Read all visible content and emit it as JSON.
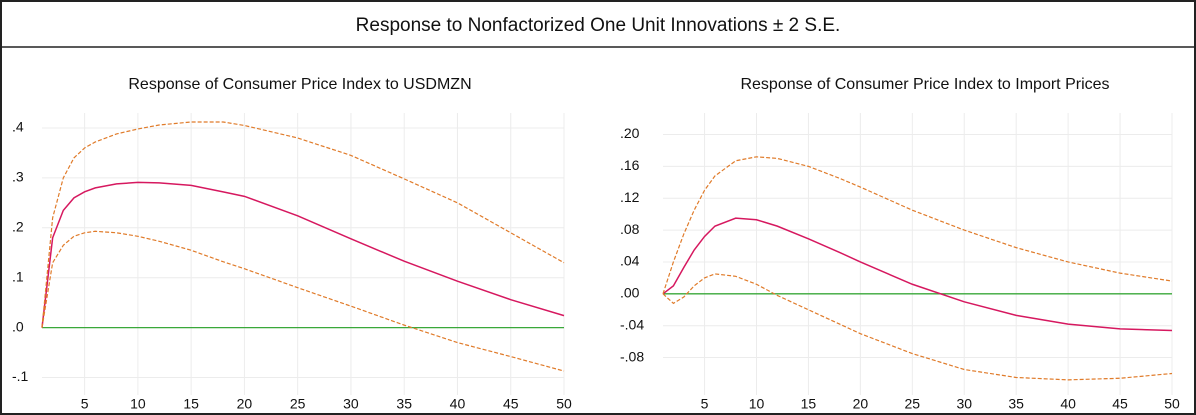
{
  "title": "Response to Nonfactorized One Unit Innovations ± 2 S.E.",
  "chart_data": [
    {
      "type": "line",
      "title": "Response of Consumer Price Index to USDMZN",
      "x": [
        1,
        2,
        3,
        4,
        5,
        6,
        8,
        10,
        12,
        15,
        18,
        20,
        25,
        30,
        35,
        40,
        45,
        50
      ],
      "series": [
        {
          "color": "#d6185f",
          "dashed": false,
          "values": [
            0,
            0.18,
            0.235,
            0.26,
            0.272,
            0.28,
            0.288,
            0.291,
            0.29,
            0.285,
            0.272,
            0.263,
            0.224,
            0.178,
            0.133,
            0.093,
            0.056,
            0.024
          ]
        },
        {
          "color": "#e07b2a",
          "dashed": true,
          "values": [
            0,
            0.22,
            0.3,
            0.34,
            0.36,
            0.372,
            0.388,
            0.398,
            0.406,
            0.412,
            0.412,
            0.405,
            0.38,
            0.345,
            0.298,
            0.25,
            0.19,
            0.13
          ]
        },
        {
          "color": "#e07b2a",
          "dashed": true,
          "values": [
            0,
            0.13,
            0.165,
            0.183,
            0.19,
            0.193,
            0.19,
            0.183,
            0.173,
            0.155,
            0.132,
            0.118,
            0.08,
            0.043,
            0.005,
            -0.03,
            -0.058,
            -0.087
          ]
        }
      ],
      "reference_line": {
        "value": 0,
        "color": "#3aa83a"
      },
      "xlim": [
        1,
        50
      ],
      "xticks": [
        5,
        10,
        15,
        20,
        25,
        30,
        35,
        40,
        45,
        50
      ],
      "ylim": [
        -0.135,
        0.43
      ],
      "yticks": [
        {
          "value": -0.1,
          "label": "-.1"
        },
        {
          "value": 0,
          "label": ".0"
        },
        {
          "value": 0.1,
          "label": ".1"
        },
        {
          "value": 0.2,
          "label": ".2"
        },
        {
          "value": 0.3,
          "label": ".3"
        },
        {
          "value": 0.4,
          "label": ".4"
        }
      ],
      "grid": true
    },
    {
      "type": "line",
      "title": "Response of Consumer Price Index to Import Prices",
      "x": [
        1,
        2,
        3,
        4,
        5,
        6,
        8,
        10,
        12,
        15,
        18,
        20,
        25,
        30,
        35,
        40,
        45,
        50
      ],
      "series": [
        {
          "color": "#d6185f",
          "dashed": false,
          "values": [
            0,
            0.01,
            0.033,
            0.055,
            0.072,
            0.085,
            0.095,
            0.093,
            0.085,
            0.069,
            0.052,
            0.04,
            0.012,
            -0.01,
            -0.027,
            -0.038,
            -0.044,
            -0.046
          ]
        },
        {
          "color": "#e07b2a",
          "dashed": true,
          "values": [
            0,
            0.04,
            0.075,
            0.105,
            0.13,
            0.148,
            0.167,
            0.172,
            0.17,
            0.16,
            0.145,
            0.134,
            0.105,
            0.08,
            0.058,
            0.04,
            0.026,
            0.016
          ]
        },
        {
          "color": "#e07b2a",
          "dashed": true,
          "values": [
            0,
            -0.012,
            -0.004,
            0.01,
            0.02,
            0.025,
            0.022,
            0.012,
            -0.002,
            -0.02,
            -0.038,
            -0.05,
            -0.075,
            -0.095,
            -0.105,
            -0.108,
            -0.106,
            -0.1
          ]
        }
      ],
      "reference_line": {
        "value": 0,
        "color": "#3aa83a"
      },
      "xlim": [
        1,
        50
      ],
      "xticks": [
        5,
        10,
        15,
        20,
        25,
        30,
        35,
        40,
        45,
        50
      ],
      "ylim": [
        -0.127,
        0.227
      ],
      "yticks": [
        {
          "value": -0.08,
          "label": "-.08"
        },
        {
          "value": -0.04,
          "label": "-.04"
        },
        {
          "value": 0,
          "label": ".00"
        },
        {
          "value": 0.04,
          "label": ".04"
        },
        {
          "value": 0.08,
          "label": ".08"
        },
        {
          "value": 0.12,
          "label": ".12"
        },
        {
          "value": 0.16,
          "label": ".16"
        },
        {
          "value": 0.2,
          "label": ".20"
        }
      ],
      "grid": true
    }
  ]
}
